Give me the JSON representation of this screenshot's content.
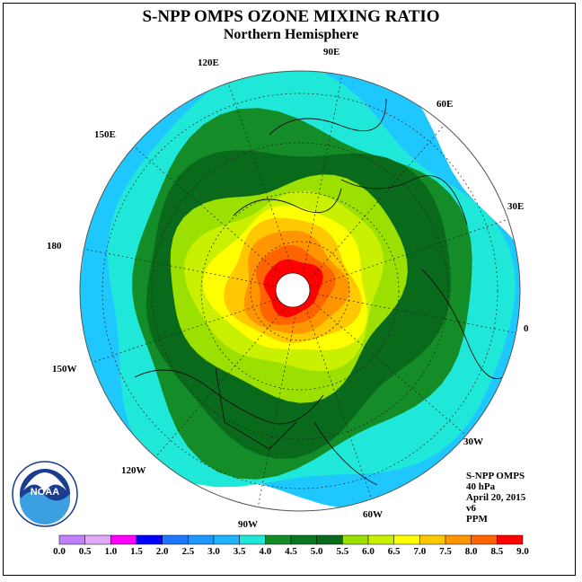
{
  "title": "S-NPP OMPS OZONE MIXING RATIO",
  "subtitle": "Northern Hemisphere",
  "longitude_labels": [
    "90E",
    "60E",
    "30E",
    "0",
    "30W",
    "60W",
    "90W",
    "120W",
    "150W",
    "180",
    "150E",
    "120E"
  ],
  "info": {
    "instrument": "S-NPP OMPS",
    "level": "40 hPa",
    "date": "April 20, 2015",
    "version": "v6",
    "units": "PPM"
  },
  "colorbar": {
    "ticks": [
      "0.0",
      "0.5",
      "1.0",
      "1.5",
      "2.0",
      "2.5",
      "3.0",
      "3.5",
      "4.0",
      "4.5",
      "5.0",
      "5.5",
      "6.0",
      "6.5",
      "7.0",
      "7.5",
      "8.0",
      "8.5",
      "9.0"
    ],
    "colors": [
      "#c080ff",
      "#e0a8f8",
      "#ff00ff",
      "#0000ff",
      "#1e78ff",
      "#1e96ff",
      "#1eb4ff",
      "#20e8d8",
      "#148c28",
      "#0a7820",
      "#0a6a1c",
      "#9be000",
      "#c8f000",
      "#ffff00",
      "#ffc800",
      "#ff9600",
      "#ff6400",
      "#ff0000",
      "#7a4a30"
    ]
  },
  "ozone_rings": [
    {
      "level": "3.0-3.5",
      "color": "#1ec8ff"
    },
    {
      "level": "3.5-4.0",
      "color": "#20e8d8"
    },
    {
      "level": "4.0-4.5",
      "color": "#148c28"
    },
    {
      "level": "4.5-5.0",
      "color": "#0a6a1c"
    },
    {
      "level": "5.0-5.5",
      "color": "#9be000"
    },
    {
      "level": "5.5-6.0",
      "color": "#c8f000"
    },
    {
      "level": "6.0-6.5",
      "color": "#ffff00"
    },
    {
      "level": "6.5-7.0",
      "color": "#ffc800"
    },
    {
      "level": "7.0-7.5",
      "color": "#ff9600"
    },
    {
      "level": "7.5-8.0",
      "color": "#ff6400"
    },
    {
      "level": "8.0-8.5",
      "color": "#ff0000"
    }
  ],
  "logo": {
    "text": "NOAA",
    "ring_text": "NATIONAL OCEANIC AND ATMOSPHERIC ADMINISTRATION · U.S. DEPARTMENT OF COMMERCE"
  }
}
